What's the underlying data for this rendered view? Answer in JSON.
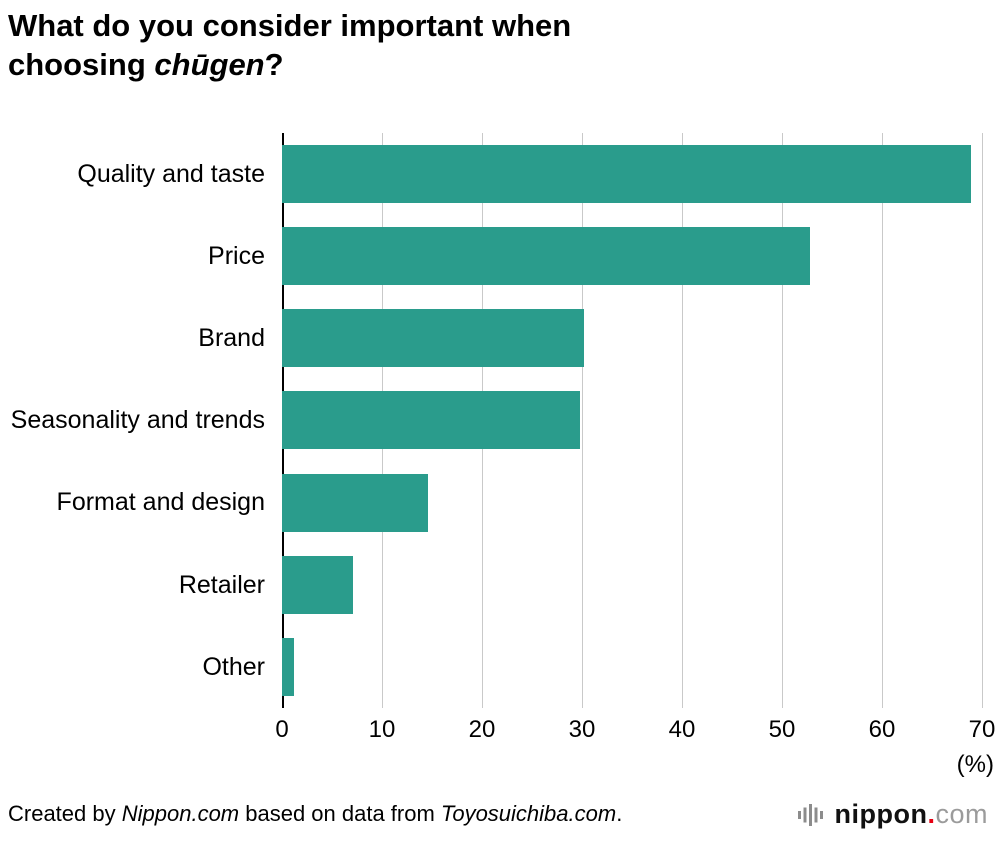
{
  "title": {
    "line1": "What do you consider important when\n",
    "line2_pre": "choosing ",
    "line2_italic": "chūgen",
    "line2_post": "?"
  },
  "chart_data": {
    "type": "bar",
    "orientation": "horizontal",
    "categories": [
      "Quality and taste",
      "Price",
      "Brand",
      "Seasonality and trends",
      "Format and design",
      "Retailer",
      "Other"
    ],
    "values": [
      68.9,
      52.8,
      30.2,
      29.8,
      14.6,
      7.1,
      1.2
    ],
    "xlim": [
      0,
      70
    ],
    "x_ticks": [
      0,
      10,
      20,
      30,
      40,
      50,
      60,
      70
    ],
    "x_unit_label": "(%)",
    "bar_color": "#2a9c8c",
    "gridline_color": "#c9c9c9",
    "axis_color": "#000000",
    "grid": true,
    "legend": "none"
  },
  "footer": {
    "credit_pre": "Created by ",
    "credit_source1": "Nippon.com",
    "credit_mid": " based on data from ",
    "credit_source2": "Toyosuichiba.com",
    "credit_post": "."
  },
  "logo": {
    "name": "nippon",
    "dot": ".",
    "tld": "com",
    "dot_color": "#e60012",
    "icon_color": "#8c8c8c"
  }
}
